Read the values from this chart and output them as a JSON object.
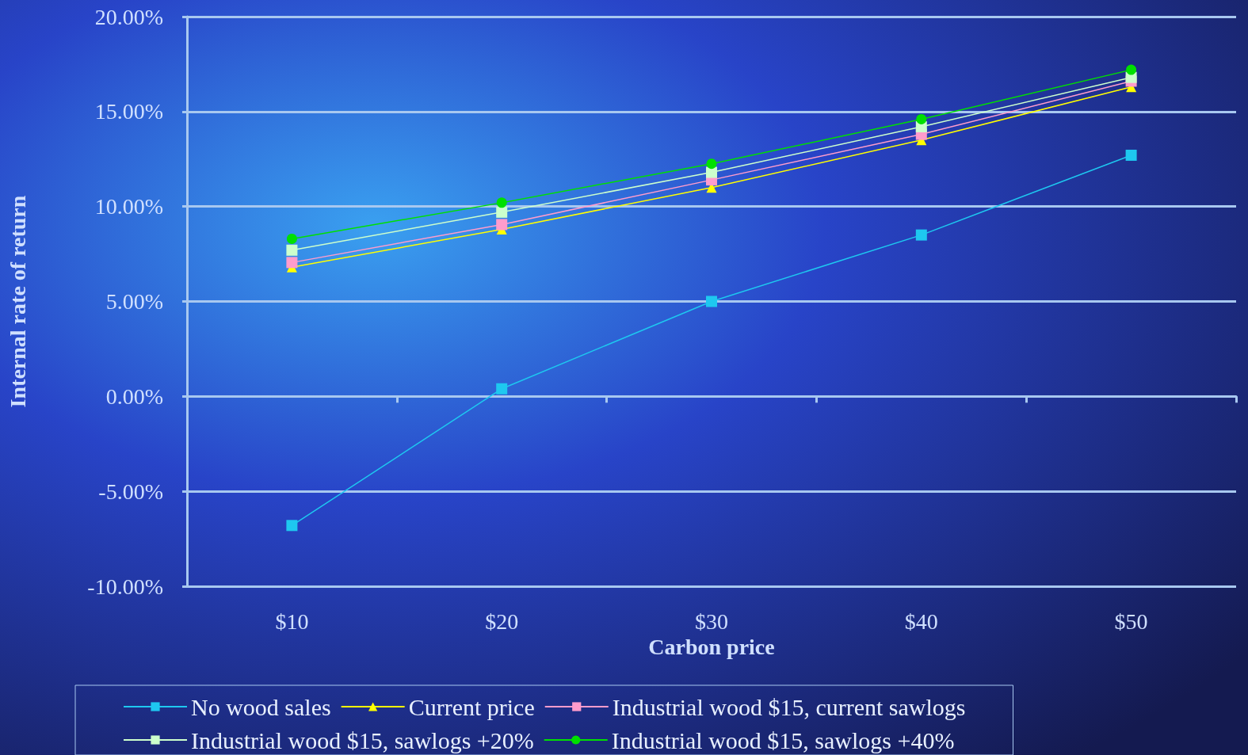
{
  "chart_data": {
    "type": "line",
    "xlabel": "Carbon price",
    "ylabel": "Internal rate of return",
    "categories": [
      "$10",
      "$20",
      "$30",
      "$40",
      "$50"
    ],
    "series": [
      {
        "name": "No wood sales",
        "color": "#1ec8f0",
        "marker": "square",
        "values": [
          -6.8,
          0.4,
          5.0,
          8.5,
          12.7
        ]
      },
      {
        "name": "Current price",
        "color": "#ffff00",
        "marker": "triangle",
        "values": [
          6.8,
          8.8,
          11.0,
          13.5,
          16.3
        ]
      },
      {
        "name": "Industrial wood $15, current sawlogs",
        "color": "#ff9ccc",
        "marker": "square",
        "values": [
          7.05,
          9.05,
          11.4,
          13.8,
          16.6
        ]
      },
      {
        "name": "Industrial wood $15, sawlogs +20%",
        "color": "#ccffcc",
        "marker": "square",
        "values": [
          7.7,
          9.7,
          11.8,
          14.2,
          16.8
        ]
      },
      {
        "name": "Industrial wood $15, sawlogs +40%",
        "color": "#00e000",
        "marker": "circle",
        "values": [
          8.3,
          10.2,
          12.25,
          14.6,
          17.2
        ]
      }
    ],
    "ylim": [
      -10,
      20
    ],
    "yticks": [
      {
        "value": -10,
        "label": "-10.00%"
      },
      {
        "value": -5,
        "label": "-5.00%"
      },
      {
        "value": 0,
        "label": "0.00%"
      },
      {
        "value": 5,
        "label": "5.00%"
      },
      {
        "value": 10,
        "label": "10.00%"
      },
      {
        "value": 15,
        "label": "15.00%"
      },
      {
        "value": 20,
        "label": "20.00%"
      }
    ],
    "grid": "y",
    "legend": "bottom"
  }
}
